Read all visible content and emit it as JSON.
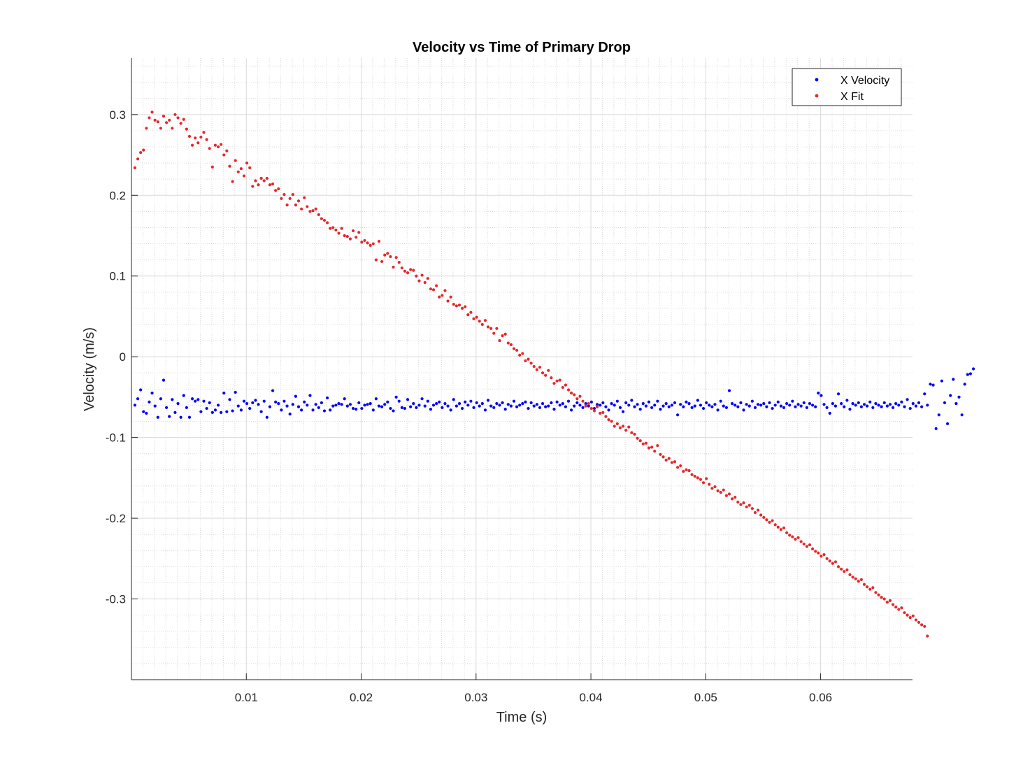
{
  "chart_data": {
    "type": "scatter",
    "title": "Velocity vs Time of Primary Drop",
    "xlabel": "Time (s)",
    "ylabel": "Velocity (m/s)",
    "xlim": [
      0,
      0.068
    ],
    "ylim": [
      -0.4,
      0.37
    ],
    "x_ticks": [
      0.01,
      0.02,
      0.03,
      0.04,
      0.05,
      0.06
    ],
    "x_tick_labels": [
      "0.01",
      "0.02",
      "0.03",
      "0.04",
      "0.05",
      "0.06"
    ],
    "y_ticks": [
      0.3,
      0.2,
      0.1,
      0,
      -0.1,
      -0.2,
      -0.3
    ],
    "y_tick_labels": [
      "0.3",
      "0.2",
      "0.1",
      "0",
      "-0.1",
      "-0.2",
      "-0.3"
    ],
    "grid": true,
    "minor_grid": true,
    "legend_position": "top-right",
    "x_start": 0.0003,
    "x_step": 0.00025,
    "series": [
      {
        "name": "X Velocity",
        "color": "#0000ff",
        "values": [
          -0.06,
          -0.052,
          -0.041,
          -0.068,
          -0.07,
          -0.056,
          -0.045,
          -0.061,
          -0.075,
          -0.052,
          -0.029,
          -0.063,
          -0.074,
          -0.053,
          -0.069,
          -0.058,
          -0.075,
          -0.048,
          -0.063,
          -0.075,
          -0.052,
          -0.055,
          -0.053,
          -0.068,
          -0.055,
          -0.064,
          -0.057,
          -0.069,
          -0.066,
          -0.06,
          -0.069,
          -0.045,
          -0.068,
          -0.053,
          -0.067,
          -0.044,
          -0.061,
          -0.066,
          -0.055,
          -0.058,
          -0.064,
          -0.057,
          -0.054,
          -0.059,
          -0.068,
          -0.055,
          -0.075,
          -0.062,
          -0.042,
          -0.056,
          -0.058,
          -0.066,
          -0.055,
          -0.061,
          -0.071,
          -0.059,
          -0.049,
          -0.062,
          -0.066,
          -0.056,
          -0.06,
          -0.048,
          -0.066,
          -0.059,
          -0.063,
          -0.057,
          -0.067,
          -0.051,
          -0.066,
          -0.061,
          -0.06,
          -0.058,
          -0.059,
          -0.052,
          -0.061,
          -0.059,
          -0.064,
          -0.065,
          -0.057,
          -0.064,
          -0.06,
          -0.059,
          -0.058,
          -0.066,
          -0.052,
          -0.061,
          -0.062,
          -0.059,
          -0.056,
          -0.064,
          -0.067,
          -0.05,
          -0.055,
          -0.063,
          -0.064,
          -0.053,
          -0.062,
          -0.058,
          -0.063,
          -0.06,
          -0.052,
          -0.061,
          -0.055,
          -0.065,
          -0.06,
          -0.058,
          -0.056,
          -0.063,
          -0.058,
          -0.061,
          -0.066,
          -0.053,
          -0.061,
          -0.058,
          -0.064,
          -0.056,
          -0.06,
          -0.055,
          -0.063,
          -0.057,
          -0.061,
          -0.058,
          -0.066,
          -0.054,
          -0.061,
          -0.063,
          -0.058,
          -0.06,
          -0.057,
          -0.065,
          -0.059,
          -0.061,
          -0.055,
          -0.062,
          -0.06,
          -0.058,
          -0.056,
          -0.064,
          -0.057,
          -0.061,
          -0.059,
          -0.063,
          -0.058,
          -0.062,
          -0.061,
          -0.057,
          -0.065,
          -0.056,
          -0.06,
          -0.058,
          -0.062,
          -0.055,
          -0.066,
          -0.061,
          -0.057,
          -0.06,
          -0.063,
          -0.058,
          -0.061,
          -0.056,
          -0.064,
          -0.059,
          -0.06,
          -0.057,
          -0.062,
          -0.066,
          -0.058,
          -0.06,
          -0.055,
          -0.063,
          -0.068,
          -0.057,
          -0.06,
          -0.054,
          -0.062,
          -0.059,
          -0.065,
          -0.058,
          -0.061,
          -0.056,
          -0.063,
          -0.06,
          -0.055,
          -0.065,
          -0.061,
          -0.058,
          -0.062,
          -0.06,
          -0.057,
          -0.072,
          -0.059,
          -0.062,
          -0.056,
          -0.058,
          -0.063,
          -0.061,
          -0.054,
          -0.06,
          -0.064,
          -0.057,
          -0.06,
          -0.062,
          -0.059,
          -0.066,
          -0.055,
          -0.061,
          -0.063,
          -0.042,
          -0.058,
          -0.06,
          -0.062,
          -0.057,
          -0.066,
          -0.059,
          -0.061,
          -0.055,
          -0.063,
          -0.059,
          -0.06,
          -0.058,
          -0.062,
          -0.057,
          -0.064,
          -0.06,
          -0.056,
          -0.061,
          -0.063,
          -0.058,
          -0.06,
          -0.055,
          -0.062,
          -0.059,
          -0.061,
          -0.057,
          -0.063,
          -0.058,
          -0.06,
          -0.062,
          -0.045,
          -0.048,
          -0.059,
          -0.063,
          -0.07,
          -0.058,
          -0.061,
          -0.046,
          -0.058,
          -0.062,
          -0.054,
          -0.065,
          -0.058,
          -0.06,
          -0.057,
          -0.062,
          -0.059,
          -0.061,
          -0.056,
          -0.063,
          -0.058,
          -0.06,
          -0.062,
          -0.057,
          -0.061,
          -0.059,
          -0.063,
          -0.058,
          -0.06,
          -0.056,
          -0.062,
          -0.053,
          -0.064,
          -0.058,
          -0.061,
          -0.057,
          -0.062,
          -0.046,
          -0.06,
          -0.034,
          -0.035,
          -0.089,
          -0.072,
          -0.03,
          -0.057,
          -0.083,
          -0.048,
          -0.028,
          -0.058,
          -0.05,
          -0.072,
          -0.034,
          -0.022,
          -0.021,
          -0.015
        ]
      },
      {
        "name": "X Fit",
        "color": "#e8262a",
        "values": [
          0.234,
          0.245,
          0.253,
          0.256,
          0.283,
          0.296,
          0.303,
          0.293,
          0.291,
          0.283,
          0.298,
          0.29,
          0.293,
          0.283,
          0.3,
          0.296,
          0.289,
          0.294,
          0.282,
          0.273,
          0.262,
          0.271,
          0.265,
          0.272,
          0.278,
          0.269,
          0.258,
          0.235,
          0.262,
          0.26,
          0.263,
          0.25,
          0.255,
          0.236,
          0.217,
          0.243,
          0.229,
          0.233,
          0.224,
          0.24,
          0.234,
          0.211,
          0.218,
          0.213,
          0.221,
          0.218,
          0.221,
          0.213,
          0.214,
          0.206,
          0.208,
          0.196,
          0.201,
          0.188,
          0.196,
          0.201,
          0.188,
          0.193,
          0.183,
          0.197,
          0.186,
          0.18,
          0.181,
          0.183,
          0.176,
          0.171,
          0.169,
          0.166,
          0.159,
          0.16,
          0.157,
          0.153,
          0.159,
          0.15,
          0.149,
          0.146,
          0.156,
          0.148,
          0.154,
          0.142,
          0.144,
          0.141,
          0.138,
          0.14,
          0.12,
          0.143,
          0.118,
          0.126,
          0.128,
          0.124,
          0.111,
          0.123,
          0.117,
          0.11,
          0.106,
          0.104,
          0.108,
          0.107,
          0.1,
          0.094,
          0.101,
          0.092,
          0.097,
          0.084,
          0.083,
          0.088,
          0.074,
          0.076,
          0.082,
          0.069,
          0.074,
          0.065,
          0.063,
          0.064,
          0.06,
          0.062,
          0.052,
          0.055,
          0.047,
          0.049,
          0.044,
          0.04,
          0.045,
          0.037,
          0.035,
          0.029,
          0.035,
          0.02,
          0.026,
          0.028,
          0.017,
          0.015,
          0.01,
          0.008,
          0.002,
          0.004,
          -0.005,
          -0.003,
          -0.008,
          -0.012,
          -0.016,
          -0.013,
          -0.02,
          -0.023,
          -0.017,
          -0.026,
          -0.033,
          -0.03,
          -0.029,
          -0.038,
          -0.035,
          -0.041,
          -0.045,
          -0.047,
          -0.052,
          -0.049,
          -0.055,
          -0.061,
          -0.058,
          -0.064,
          -0.067,
          -0.062,
          -0.07,
          -0.069,
          -0.074,
          -0.078,
          -0.08,
          -0.086,
          -0.083,
          -0.088,
          -0.086,
          -0.091,
          -0.087,
          -0.094,
          -0.096,
          -0.101,
          -0.104,
          -0.108,
          -0.107,
          -0.113,
          -0.112,
          -0.117,
          -0.11,
          -0.121,
          -0.124,
          -0.128,
          -0.126,
          -0.131,
          -0.13,
          -0.137,
          -0.135,
          -0.142,
          -0.14,
          -0.141,
          -0.146,
          -0.148,
          -0.15,
          -0.152,
          -0.156,
          -0.151,
          -0.158,
          -0.163,
          -0.161,
          -0.166,
          -0.168,
          -0.165,
          -0.172,
          -0.17,
          -0.176,
          -0.174,
          -0.18,
          -0.183,
          -0.181,
          -0.186,
          -0.184,
          -0.188,
          -0.193,
          -0.19,
          -0.196,
          -0.199,
          -0.202,
          -0.205,
          -0.203,
          -0.208,
          -0.211,
          -0.214,
          -0.212,
          -0.218,
          -0.221,
          -0.223,
          -0.226,
          -0.224,
          -0.229,
          -0.232,
          -0.235,
          -0.233,
          -0.238,
          -0.241,
          -0.243,
          -0.247,
          -0.245,
          -0.25,
          -0.253,
          -0.256,
          -0.254,
          -0.26,
          -0.263,
          -0.266,
          -0.264,
          -0.27,
          -0.273,
          -0.275,
          -0.278,
          -0.276,
          -0.282,
          -0.285,
          -0.288,
          -0.286,
          -0.292,
          -0.295,
          -0.298,
          -0.3,
          -0.304,
          -0.302,
          -0.307,
          -0.31,
          -0.313,
          -0.311,
          -0.317,
          -0.32,
          -0.323,
          -0.321,
          -0.326,
          -0.329,
          -0.332,
          -0.334,
          -0.346
        ]
      }
    ]
  }
}
